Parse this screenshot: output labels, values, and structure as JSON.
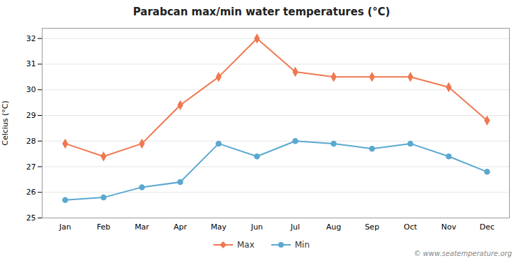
{
  "chart_data": {
    "type": "line",
    "title": "Parabcan max/min water temperatures (°C)",
    "ylabel": "Celcius (°C)",
    "categories": [
      "Jan",
      "Feb",
      "Mar",
      "Apr",
      "May",
      "Jun",
      "Jul",
      "Aug",
      "Sep",
      "Oct",
      "Nov",
      "Dec"
    ],
    "series": [
      {
        "name": "Max",
        "color": "#f07850",
        "marker": "diamond",
        "values": [
          27.9,
          27.4,
          27.9,
          29.4,
          30.5,
          32.0,
          30.7,
          30.5,
          30.5,
          30.5,
          30.1,
          28.8
        ]
      },
      {
        "name": "Min",
        "color": "#5aa8d0",
        "marker": "circle",
        "values": [
          25.7,
          25.8,
          26.2,
          26.4,
          27.9,
          27.4,
          28.0,
          27.9,
          27.7,
          27.9,
          27.4,
          26.8
        ]
      }
    ],
    "ylim": [
      25,
      32.4
    ],
    "yticks": [
      25,
      26,
      27,
      28,
      29,
      30,
      31,
      32
    ],
    "grid": true,
    "legend": "bottom",
    "annotations": [
      "© www.seatemperature.org"
    ]
  }
}
